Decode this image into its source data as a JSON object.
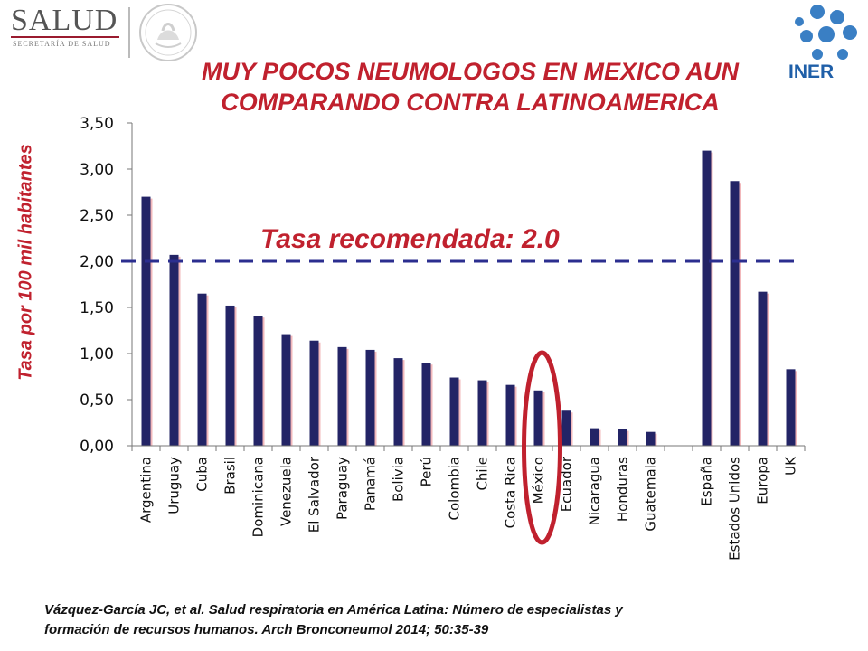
{
  "header": {
    "left_logo": {
      "name": "SALUD",
      "subtitle": "SECRETARÍA DE SALUD"
    },
    "seal": {
      "name": "ESTADOS UNIDOS MEXICANOS"
    },
    "right_logo": {
      "name": "INER"
    }
  },
  "colors": {
    "bar": "#232466",
    "title": "#c0212e",
    "reference_line": "#2b2e8f",
    "highlight": "#c0212e"
  },
  "chart_data": {
    "type": "bar",
    "title": "MUY POCOS NEUMOLOGOS EN MEXICO AUN COMPARANDO CONTRA LATINOAMERICA",
    "title_lines": [
      "MUY POCOS NEUMOLOGOS EN MEXICO AUN",
      "COMPARANDO CONTRA LATINOAMERICA"
    ],
    "ylabel": "Tasa por 100 mil habitantes",
    "xlabel": "",
    "ylim": [
      0,
      3.5
    ],
    "yticks": [
      "0,00",
      "0,50",
      "1,00",
      "1,50",
      "2,00",
      "2,50",
      "3,00",
      "3,50"
    ],
    "grid": false,
    "categories": [
      "Argentina",
      "Uruguay",
      "Cuba",
      "Brasil",
      "Dominicana",
      "Venezuela",
      "El Salvador",
      "Paraguay",
      "Panamá",
      "Bolivia",
      "Perú",
      "Colombia",
      "Chile",
      "Costa Rica",
      "México",
      "Ecuador",
      "Nicaragua",
      "Honduras",
      "Guatemala",
      "",
      "España",
      "Estados Unidos",
      "Europa",
      "UK"
    ],
    "values": [
      2.7,
      2.07,
      1.65,
      1.52,
      1.41,
      1.21,
      1.14,
      1.07,
      1.04,
      0.95,
      0.9,
      0.74,
      0.71,
      0.66,
      0.6,
      0.38,
      0.19,
      0.18,
      0.15,
      null,
      3.2,
      2.87,
      1.67,
      0.83
    ],
    "reference_line": {
      "value": 2.0,
      "label": "Tasa recomendada: 2.0",
      "style": "dashed"
    },
    "highlight": {
      "category": "México",
      "shape": "ellipse"
    }
  },
  "citation": {
    "line1": "Vázquez-García JC, et al.  Salud respiratoria en América Latina: Número de especialistas y",
    "line2": "formación de recursos humanos.  Arch Bronconeumol 2014; 50:35-39"
  }
}
